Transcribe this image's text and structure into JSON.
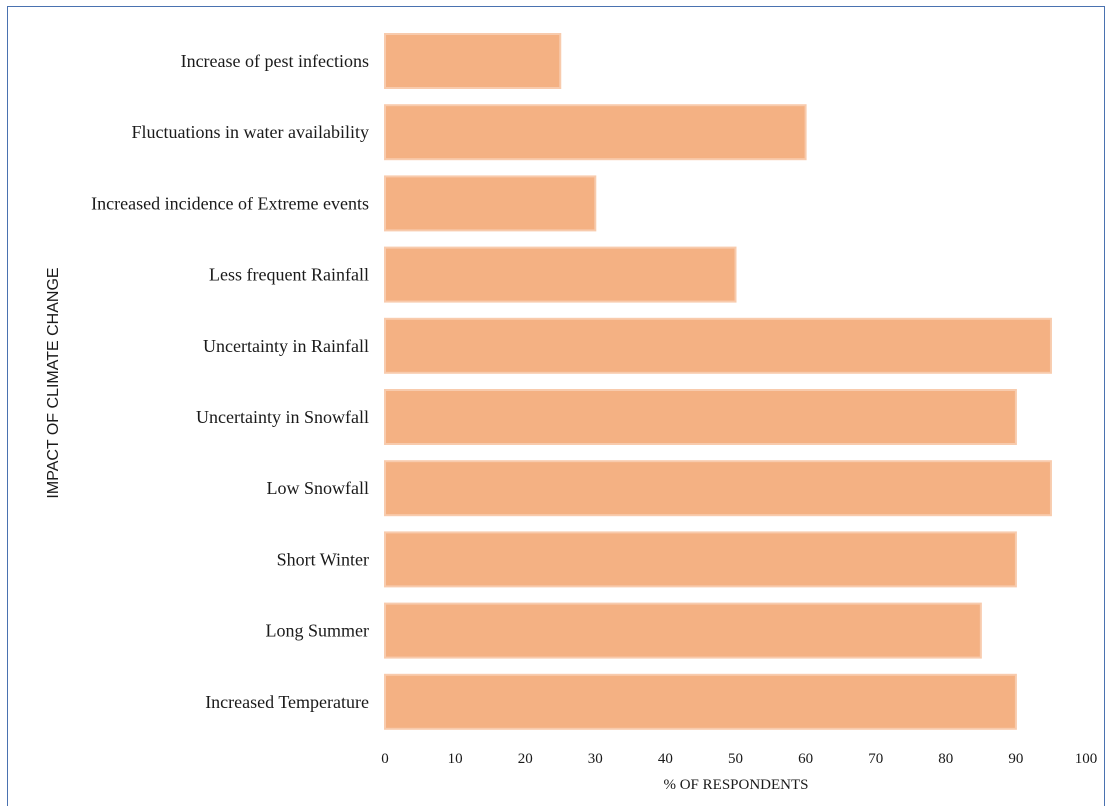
{
  "chart_data": {
    "type": "bar",
    "orientation": "horizontal",
    "categories": [
      "Increase of pest infections",
      "Fluctuations in water availability",
      "Increased incidence of Extreme events",
      "Less frequent Rainfall",
      "Uncertainty in Rainfall",
      "Uncertainty in Snowfall",
      "Low Snowfall",
      "Short Winter",
      "Long Summer",
      "Increased Temperature"
    ],
    "values": [
      25,
      60,
      30,
      50,
      95,
      90,
      95,
      90,
      85,
      90
    ],
    "xlabel": "% OF RESPONDENTS",
    "ylabel": "IMPACT OF CLIMATE CHANGE",
    "xlim": [
      0,
      100
    ],
    "xticks": [
      0,
      10,
      20,
      30,
      40,
      50,
      60,
      70,
      80,
      90,
      100
    ],
    "grid": false,
    "legend": "none",
    "bar_color": "#f4b183",
    "bar_edge_color": "#f8cbad"
  }
}
